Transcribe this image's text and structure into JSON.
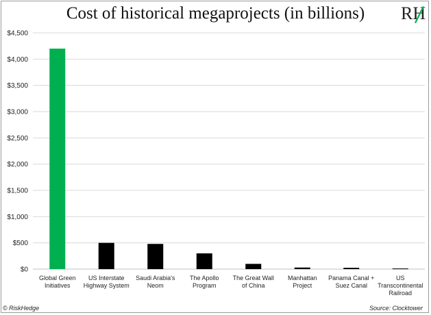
{
  "title": "Cost of historical megaprojects (in billions)",
  "brand": {
    "logo_text": "RH",
    "copyright": "© RiskHedge"
  },
  "source": "Source: Clocktower",
  "colors": {
    "highlight": "#00b050",
    "default_bar": "#000000",
    "grid": "#d9d9d9",
    "logo": "#222222",
    "logo_accent": "#00b050"
  },
  "chart_data": {
    "type": "bar",
    "title": "Cost of historical megaprojects (in billions)",
    "xlabel": "",
    "ylabel": "",
    "ylim": [
      0,
      4500
    ],
    "yticks": [
      0,
      500,
      1000,
      1500,
      2000,
      2500,
      3000,
      3500,
      4000,
      4500
    ],
    "ytick_labels": [
      "$0",
      "$500",
      "$1,000",
      "$1,500",
      "$2,000",
      "$2,500",
      "$3,000",
      "$3,500",
      "$4,000",
      "$4,500"
    ],
    "grid": true,
    "legend": "none",
    "categories": [
      [
        "Global Green",
        "Initiatives"
      ],
      [
        "US Interstate",
        "Highway System"
      ],
      [
        "Saudi Arabia's",
        "Neom"
      ],
      [
        "The Apollo",
        "Program"
      ],
      [
        "The Great Wall",
        "of China"
      ],
      [
        "Manhattan",
        "Project"
      ],
      [
        "Panama Canal +",
        "Suez Canal"
      ],
      [
        "US",
        "Transcontinental",
        "Railroad"
      ]
    ],
    "values": [
      4200,
      500,
      480,
      300,
      100,
      30,
      25,
      12
    ],
    "highlight_index": 0
  }
}
